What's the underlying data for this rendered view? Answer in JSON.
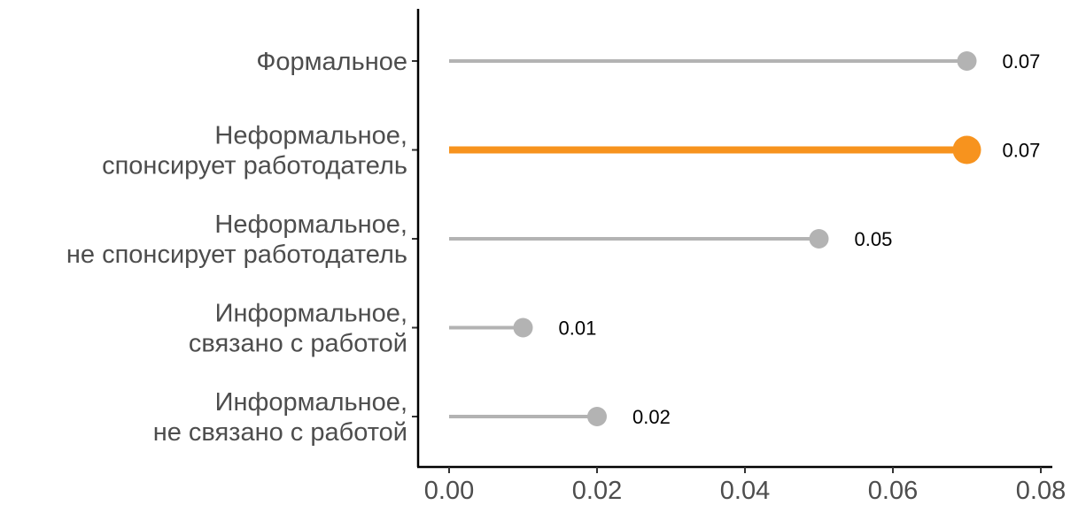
{
  "chart_data": {
    "type": "lollipop",
    "orientation": "horizontal",
    "categories": [
      [
        "Формальное"
      ],
      [
        "Неформальное,",
        "спонсирует работодатель"
      ],
      [
        "Неформальное,",
        "не спонсирует работодатель"
      ],
      [
        "Информальное,",
        "связано с работой"
      ],
      [
        "Информальное,",
        "не связано с работой"
      ]
    ],
    "values": [
      0.07,
      0.07,
      0.05,
      0.01,
      0.02
    ],
    "value_labels": [
      "0.07",
      "0.07",
      "0.05",
      "0.01",
      "0.02"
    ],
    "highlight_index": 1,
    "x_ticks": [
      "0.00",
      "0.02",
      "0.04",
      "0.06",
      "0.08"
    ],
    "xlim": [
      0,
      0.08
    ],
    "title": "",
    "xlabel": "",
    "ylabel": "",
    "grid": false,
    "legend": "none",
    "colors": {
      "default": "#b3b3b3",
      "highlight": "#f7931e",
      "axis": "#000000",
      "label_text": "#4d4d4d",
      "value_text": "#000000"
    }
  }
}
